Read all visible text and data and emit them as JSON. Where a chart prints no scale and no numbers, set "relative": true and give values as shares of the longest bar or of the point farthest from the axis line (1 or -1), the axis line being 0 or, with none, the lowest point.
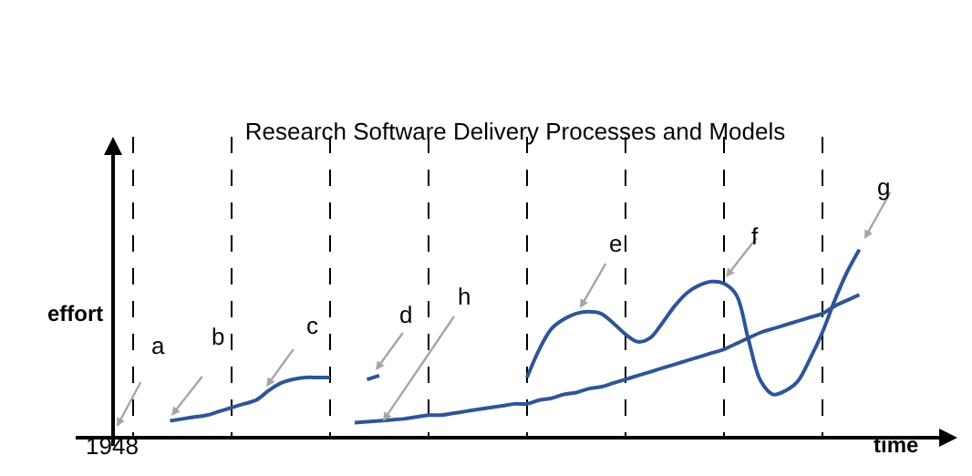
{
  "chart_data": {
    "type": "line",
    "title": "Research Software Delivery Processes and Models",
    "xlabel": "time",
    "ylabel": "effort",
    "relative": true,
    "legend": false,
    "grid": "x",
    "marker": "none",
    "line_style": "solid",
    "categories": [
      null,
      null,
      null,
      null,
      null,
      null,
      null,
      null,
      null,
      null,
      null,
      null,
      null,
      null,
      null,
      null,
      null,
      null,
      null,
      null,
      null,
      null,
      null,
      null,
      null,
      null,
      null,
      null,
      null,
      null,
      null,
      null,
      null,
      null,
      null,
      null,
      null,
      null,
      null,
      null,
      null,
      null,
      null,
      null,
      null,
      null,
      null,
      null,
      null,
      null,
      null,
      null,
      null,
      null,
      null,
      null,
      null,
      null,
      null,
      null,
      null,
      null,
      null,
      null
    ],
    "series": [
      {
        "color": "#2f5597",
        "values": [
          null,
          null,
          null,
          null,
          null,
          null,
          null,
          0.09,
          0.1,
          0.11,
          0.12,
          0.14,
          0.16,
          0.18,
          0.2,
          0.25,
          0.29,
          0.31,
          0.32,
          0.32,
          0.32,
          null,
          null,
          null,
          null,
          null,
          null,
          null,
          null,
          null,
          null,
          null,
          null,
          null,
          null,
          null,
          null,
          null,
          null,
          null,
          null,
          null,
          null,
          null,
          null,
          null,
          null,
          null,
          null,
          null,
          null,
          null,
          null,
          null,
          null,
          null,
          null,
          null,
          null,
          null,
          null,
          null,
          null,
          null
        ]
      },
      {
        "color": "#2f5597",
        "values": [
          null,
          null,
          null,
          null,
          null,
          null,
          null,
          null,
          null,
          null,
          null,
          null,
          null,
          null,
          null,
          null,
          null,
          null,
          null,
          null,
          null,
          null,
          null,
          0.31,
          0.33,
          null,
          null,
          null,
          null,
          null,
          null,
          null,
          null,
          null,
          null,
          null,
          null,
          null,
          null,
          null,
          null,
          null,
          null,
          null,
          null,
          null,
          null,
          null,
          null,
          null,
          null,
          null,
          null,
          null,
          null,
          null,
          null,
          null,
          null,
          null,
          null,
          null,
          null,
          null
        ]
      },
      {
        "color": "#2f5597",
        "values": [
          null,
          null,
          null,
          null,
          null,
          null,
          null,
          null,
          null,
          null,
          null,
          null,
          null,
          null,
          null,
          null,
          null,
          null,
          null,
          null,
          null,
          null,
          0.08,
          0.085,
          0.09,
          0.095,
          0.1,
          0.11,
          0.12,
          0.12,
          0.13,
          0.14,
          0.15,
          0.16,
          0.17,
          0.18,
          0.18,
          0.2,
          0.21,
          0.23,
          0.24,
          0.26,
          0.27,
          0.29,
          0.31,
          0.33,
          0.35,
          0.37,
          0.39,
          0.41,
          0.43,
          0.45,
          0.47,
          0.5,
          0.53,
          0.56,
          0.58,
          0.6,
          0.62,
          0.64,
          0.66,
          0.7,
          0.73,
          0.76
        ]
      },
      {
        "color": "#2f5597",
        "values": [
          null,
          null,
          null,
          null,
          null,
          null,
          null,
          null,
          null,
          null,
          null,
          null,
          null,
          null,
          null,
          null,
          null,
          null,
          null,
          null,
          null,
          null,
          null,
          null,
          null,
          null,
          null,
          null,
          null,
          null,
          null,
          null,
          null,
          null,
          null,
          null,
          0.32,
          0.47,
          0.58,
          0.63,
          0.66,
          0.67,
          0.66,
          0.61,
          0.55,
          0.51,
          0.53,
          0.61,
          0.7,
          0.77,
          0.81,
          0.83,
          0.82,
          0.76,
          0.52,
          0.3,
          0.23,
          0.25,
          0.3,
          0.42,
          0.56,
          0.73,
          0.88,
          1.0
        ]
      }
    ],
    "annotations": [
      "a",
      "b",
      "c",
      "d",
      "e",
      "f",
      "g",
      "h",
      "1948"
    ]
  }
}
